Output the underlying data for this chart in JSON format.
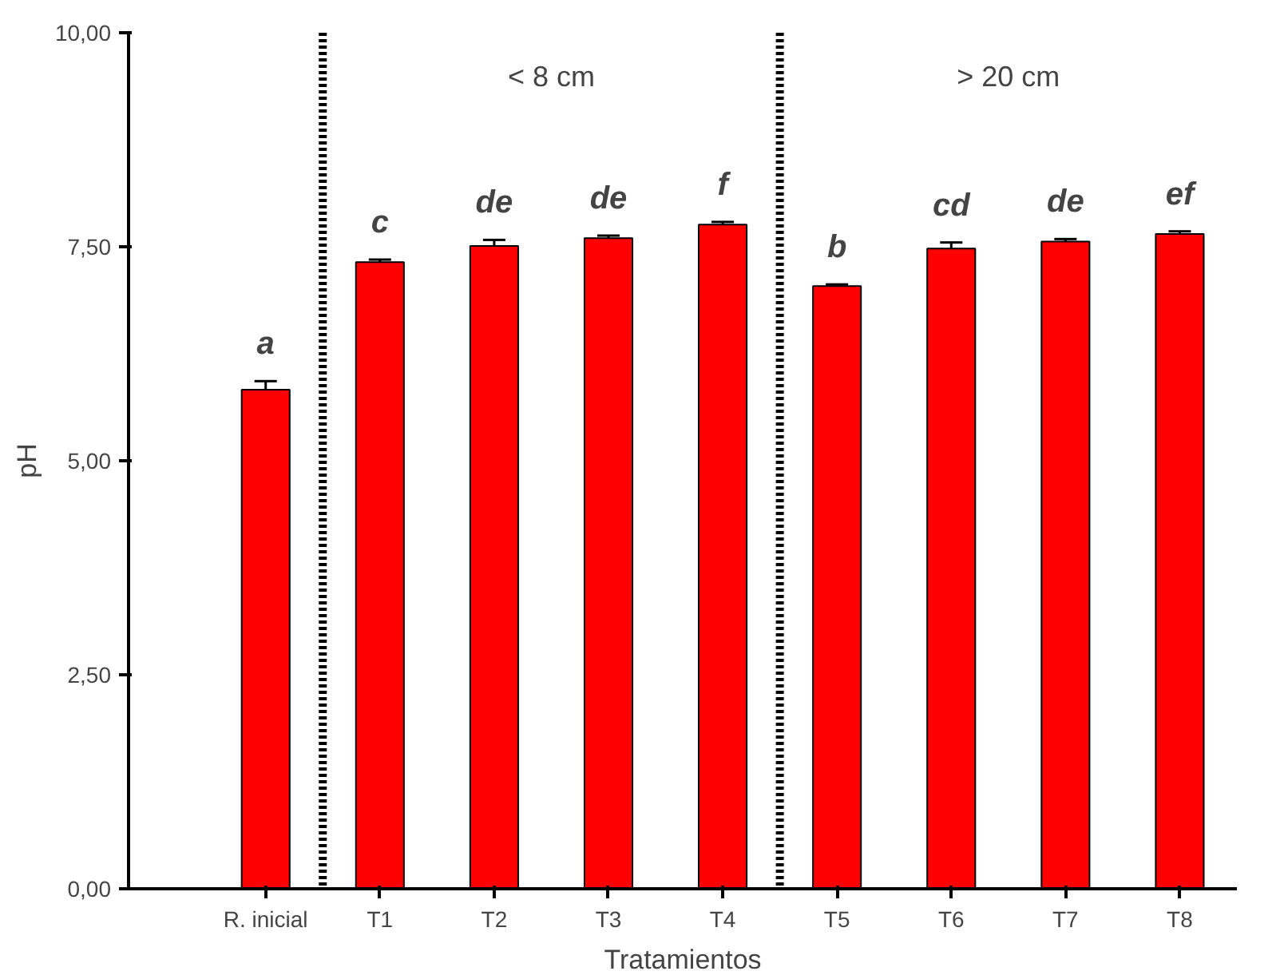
{
  "chart_data": {
    "type": "bar",
    "xlabel": "Tratamientos",
    "ylabel": "pH",
    "categories": [
      "R. inicial",
      "T1",
      "T2",
      "T3",
      "T4",
      "T5",
      "T6",
      "T7",
      "T8"
    ],
    "values": [
      5.83,
      7.32,
      7.51,
      7.6,
      7.76,
      7.04,
      7.48,
      7.56,
      7.65
    ],
    "errors": [
      0.1,
      0.03,
      0.07,
      0.03,
      0.03,
      0.02,
      0.07,
      0.03,
      0.03
    ],
    "color": "#ff0000",
    "ylim": [
      0,
      10
    ],
    "yticks": [
      {
        "value": 0,
        "label": "0,00"
      },
      {
        "value": 2.5,
        "label": "2,50"
      },
      {
        "value": 5,
        "label": "5,00"
      },
      {
        "value": 7.5,
        "label": "7,50"
      },
      {
        "value": 10,
        "label": "10,00"
      }
    ],
    "grid": false,
    "annotations": [
      "a",
      "c",
      "de",
      "de",
      "f",
      "b",
      "cd",
      "de",
      "ef",
      "< 8 cm",
      "> 20 cm"
    ]
  }
}
